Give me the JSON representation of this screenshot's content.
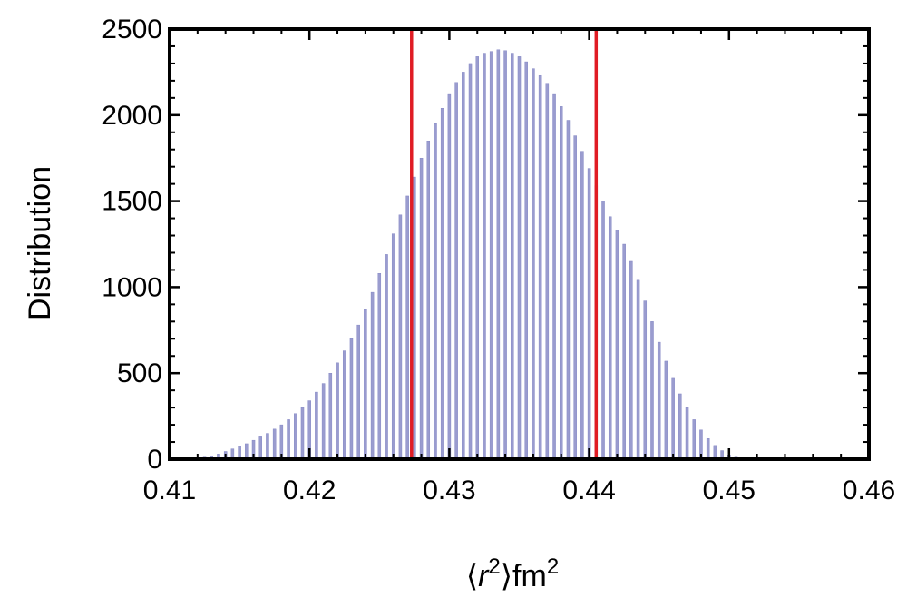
{
  "chart_data": {
    "type": "bar",
    "title": "",
    "xlabel": {
      "open": "⟨",
      "var": "r",
      "sup": "2",
      "close": "⟩fm",
      "unit_sup": "2"
    },
    "ylabel": "Distribution",
    "xlim": [
      0.41,
      0.46
    ],
    "ylim": [
      0,
      2500
    ],
    "x_ticks": [
      "0.41",
      "0.42",
      "0.43",
      "0.44",
      "0.45",
      "0.46"
    ],
    "y_ticks": [
      "0",
      "500",
      "1000",
      "1500",
      "2000",
      "2500"
    ],
    "bar_color": "#9a9ccf",
    "bar_edge_color": "#7c7fc0",
    "line_color": "#e01c24",
    "vertical_lines": [
      0.4273,
      0.4405
    ],
    "bin_width": 0.0002,
    "x": [
      0.4121,
      0.4125,
      0.413,
      0.4135,
      0.414,
      0.4145,
      0.415,
      0.4155,
      0.416,
      0.4165,
      0.417,
      0.4175,
      0.418,
      0.4185,
      0.419,
      0.4195,
      0.42,
      0.4205,
      0.421,
      0.4215,
      0.422,
      0.4225,
      0.423,
      0.4235,
      0.424,
      0.4245,
      0.425,
      0.4255,
      0.426,
      0.4265,
      0.427,
      0.4275,
      0.428,
      0.4285,
      0.429,
      0.4295,
      0.43,
      0.4305,
      0.431,
      0.4315,
      0.432,
      0.4325,
      0.433,
      0.4335,
      0.434,
      0.4345,
      0.435,
      0.4355,
      0.436,
      0.4365,
      0.437,
      0.4375,
      0.438,
      0.4385,
      0.439,
      0.4395,
      0.44,
      0.4405,
      0.441,
      0.4415,
      0.442,
      0.4425,
      0.443,
      0.4435,
      0.444,
      0.4445,
      0.445,
      0.4455,
      0.446,
      0.4465,
      0.447,
      0.4475,
      0.448,
      0.4485,
      0.449,
      0.4495,
      0.45,
      0.4505,
      0.451,
      0.4515
    ],
    "values": [
      5,
      12,
      20,
      30,
      45,
      60,
      75,
      90,
      110,
      130,
      150,
      175,
      200,
      230,
      265,
      300,
      340,
      390,
      440,
      500,
      560,
      630,
      700,
      780,
      870,
      970,
      1080,
      1190,
      1310,
      1420,
      1530,
      1640,
      1750,
      1850,
      1950,
      2040,
      2120,
      2190,
      2250,
      2300,
      2340,
      2360,
      2370,
      2380,
      2375,
      2360,
      2340,
      2310,
      2270,
      2230,
      2180,
      2120,
      2050,
      1970,
      1880,
      1790,
      1690,
      1590,
      1500,
      1410,
      1330,
      1250,
      1150,
      1040,
      920,
      800,
      680,
      570,
      470,
      380,
      300,
      230,
      170,
      120,
      80,
      50,
      25,
      12,
      5,
      2
    ]
  }
}
